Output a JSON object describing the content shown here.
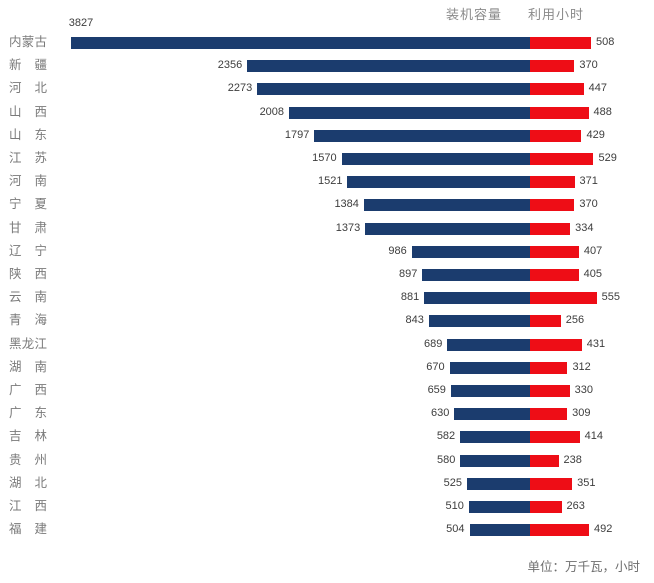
{
  "legend": {
    "items": [
      {
        "label": "装机容量",
        "color": "#1B3C6E"
      },
      {
        "label": "利用小时",
        "color": "#EE0D16"
      }
    ]
  },
  "footer": {
    "unit_note": "单位：万千瓦，小时"
  },
  "chart_data": {
    "type": "bar",
    "variant": "horizontal-diverging",
    "title": "",
    "legend_position": "top-right",
    "axes": {
      "hidden": true,
      "gridlines": false
    },
    "unit_note": "单位：万千瓦，小时",
    "categories": [
      "内蒙古",
      "新疆",
      "河北",
      "山西",
      "山东",
      "江苏",
      "河南",
      "宁夏",
      "甘肃",
      "辽宁",
      "陕西",
      "云南",
      "青海",
      "黑龙江",
      "湖南",
      "广西",
      "广东",
      "吉林",
      "贵州",
      "湖北",
      "江西",
      "福建"
    ],
    "series": [
      {
        "name": "装机容量",
        "direction": "left",
        "color": "#1B3C6E",
        "values": [
          3827,
          2356,
          2273,
          2008,
          1797,
          1570,
          1521,
          1384,
          1373,
          986,
          897,
          881,
          843,
          689,
          670,
          659,
          630,
          582,
          580,
          525,
          510,
          504
        ]
      },
      {
        "name": "利用小时",
        "direction": "right",
        "color": "#EE0D16",
        "values": [
          508,
          370,
          447,
          488,
          429,
          529,
          371,
          370,
          334,
          407,
          405,
          555,
          256,
          431,
          312,
          330,
          309,
          414,
          238,
          351,
          263,
          492
        ]
      }
    ]
  }
}
